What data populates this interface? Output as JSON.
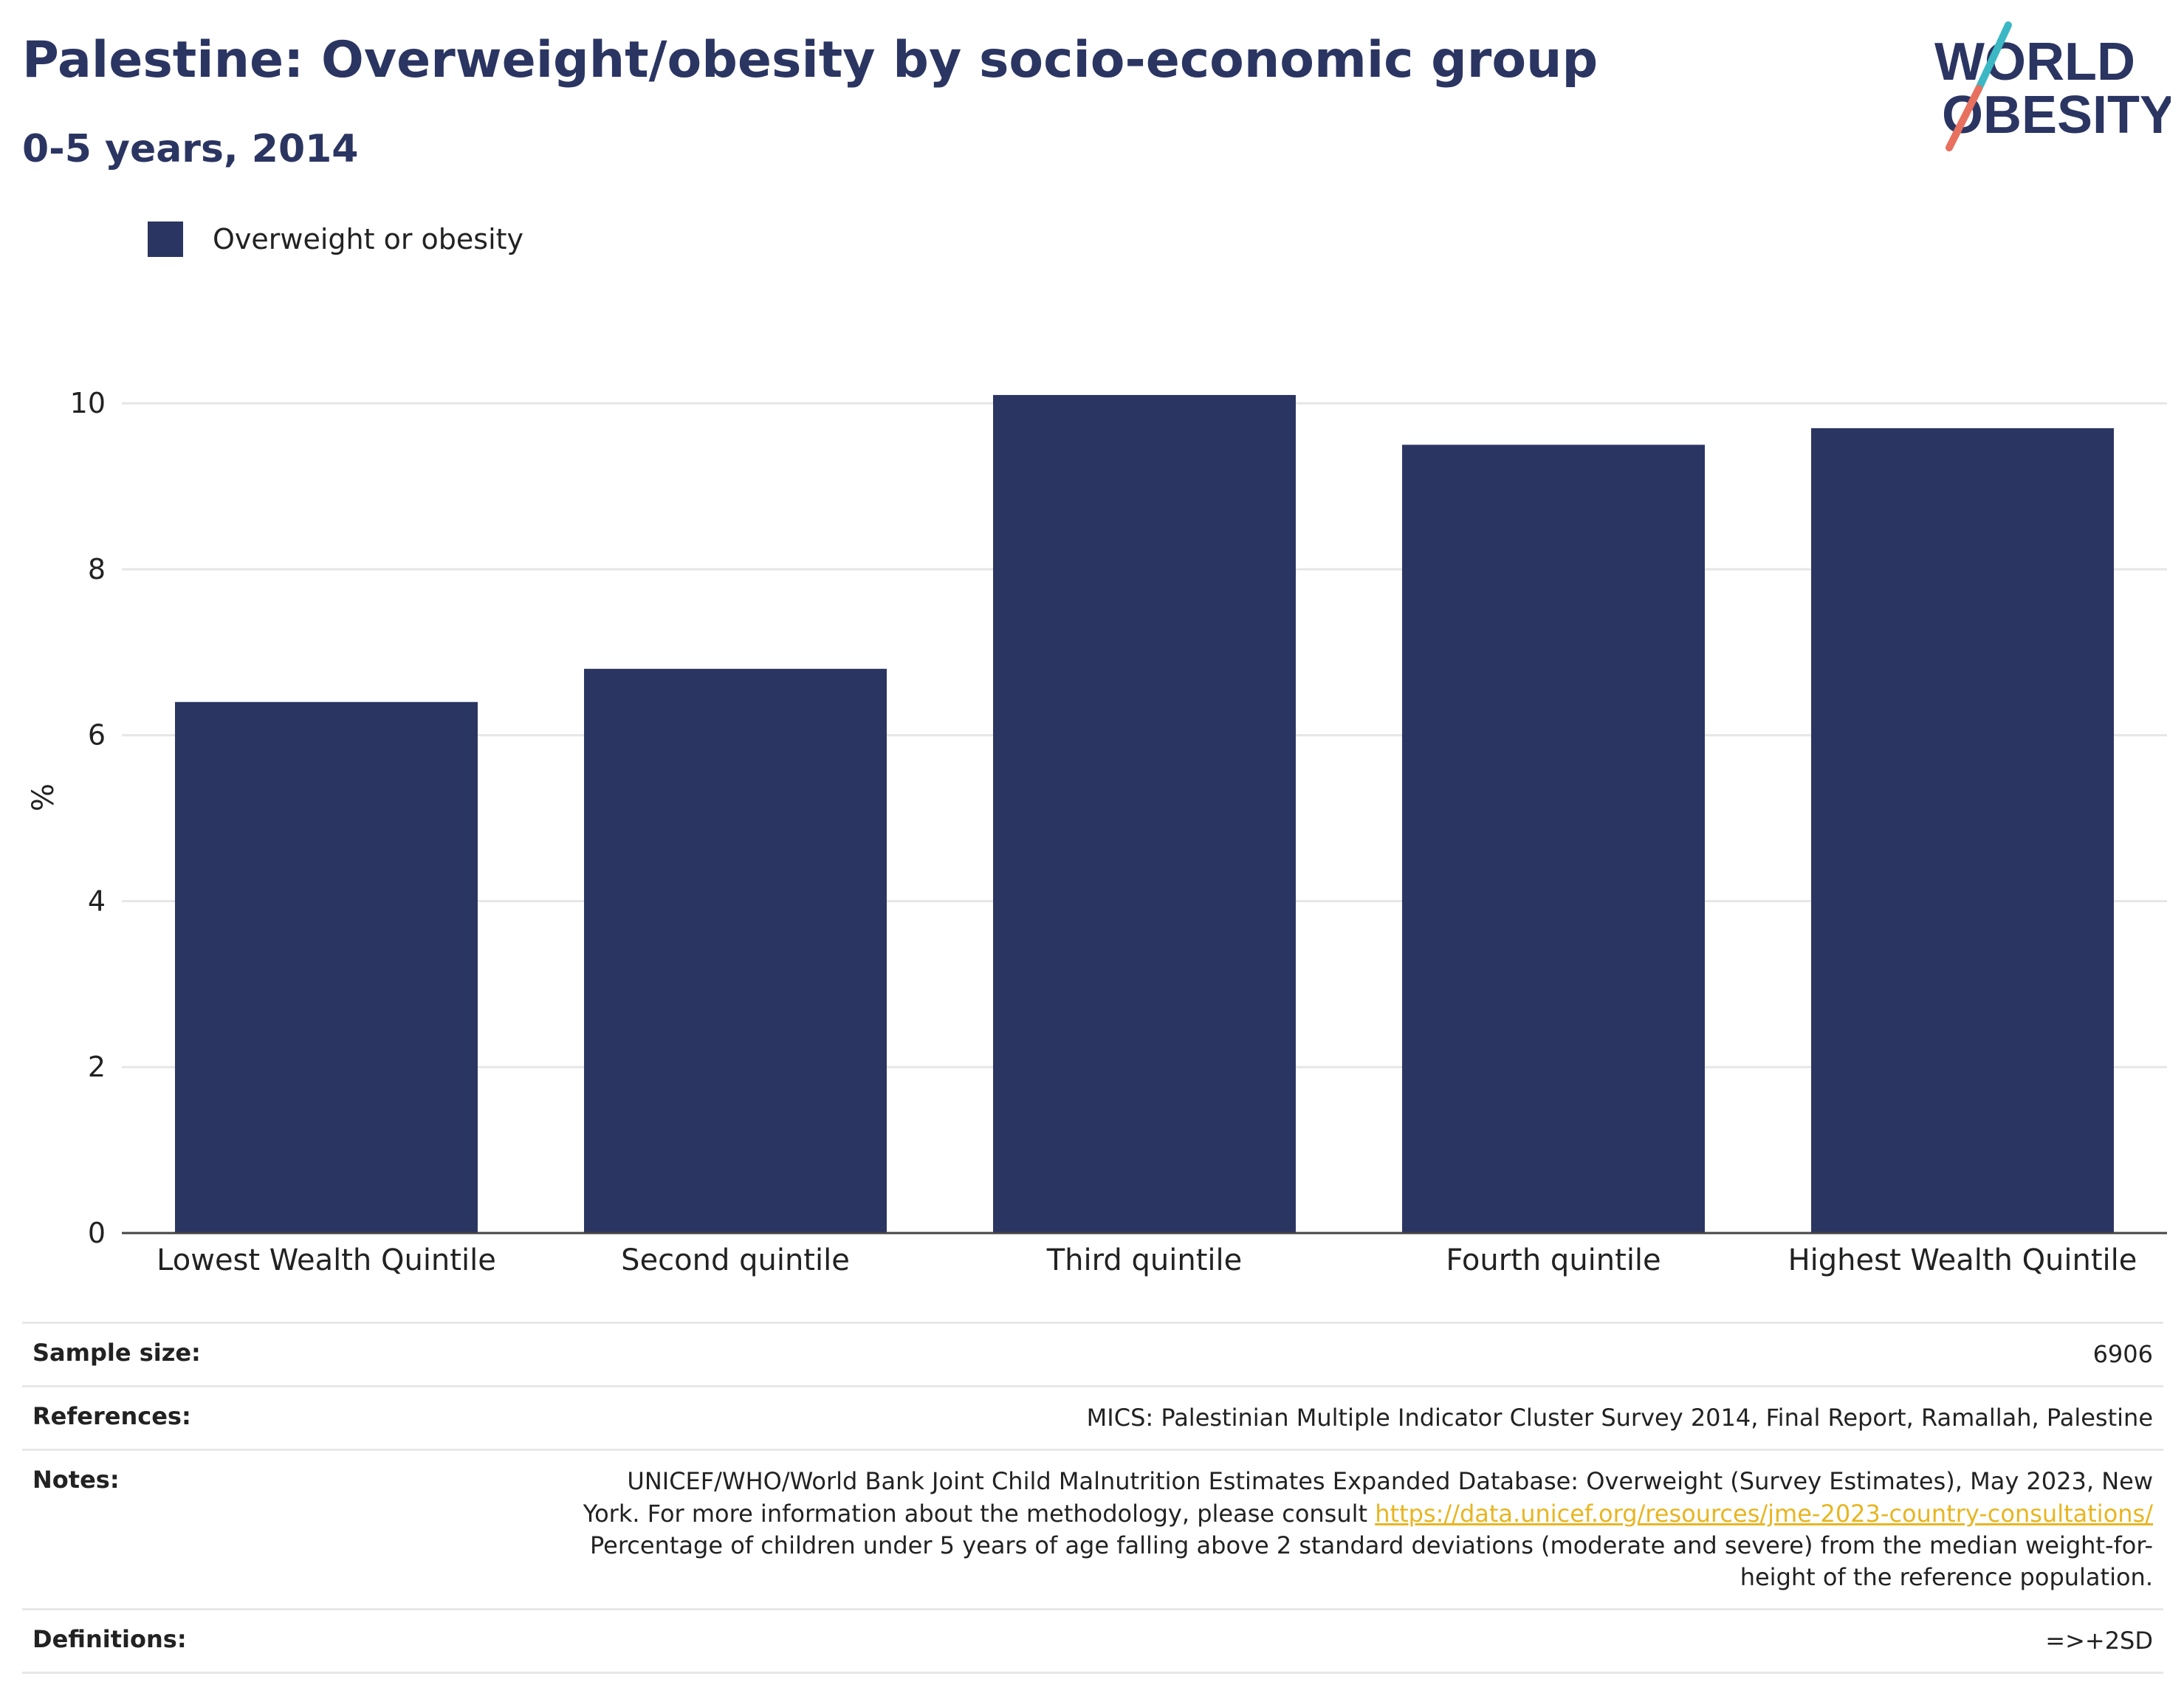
{
  "title": "Palestine: Overweight/obesity by socio-economic group",
  "subtitle": "0-5 years, 2014",
  "logo": {
    "line1": "WORLD",
    "line2": "OBESITY"
  },
  "colors": {
    "bar": "#2b3562",
    "title": "#2b3562",
    "link": "#e8b521",
    "logo_teal": "#3bb8c3",
    "logo_coral": "#e8705f"
  },
  "chart_data": {
    "type": "bar",
    "categories": [
      "Lowest Wealth Quintile",
      "Second quintile",
      "Third quintile",
      "Fourth quintile",
      "Highest Wealth Quintile"
    ],
    "series": [
      {
        "name": "Overweight or obesity",
        "values": [
          6.4,
          6.8,
          10.1,
          9.5,
          9.7
        ]
      }
    ],
    "ylabel": "%",
    "xlabel": "",
    "ylim": [
      0,
      10.5
    ],
    "yticks": [
      0,
      2,
      4,
      6,
      8,
      10
    ],
    "grid": true,
    "legend": "top-left"
  },
  "info": {
    "sample_size_label": "Sample size:",
    "sample_size_value": "6906",
    "references_label": "References:",
    "references_value": "MICS: Palestinian Multiple Indicator Cluster Survey 2014, Final Report, Ramallah, Palestine",
    "notes_label": "Notes:",
    "notes_line1": "UNICEF/WHO/World Bank Joint Child Malnutrition Estimates Expanded Database: Overweight (Survey Estimates), May 2023, New",
    "notes_line2_prefix": "York. For more information about the methodology, please consult ",
    "notes_link": "https://data.unicef.org/resources/jme-2023-country-consultations/",
    "notes_line3": "Percentage of children under 5 years of age falling above 2 standard deviations (moderate and severe) from the median weight-for-",
    "notes_line4": "height of the reference population.",
    "definitions_label": "Definitions:",
    "definitions_value": "=>+2SD"
  }
}
